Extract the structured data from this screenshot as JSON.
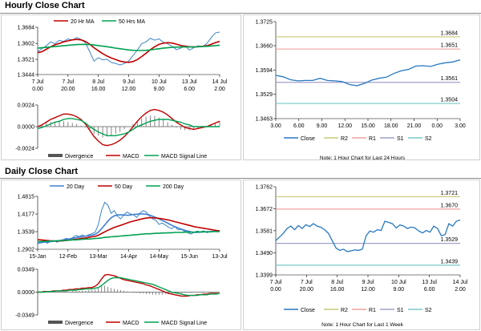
{
  "titles": {
    "hourly": "Hourly Close Chart",
    "daily": "Daily Close Chart"
  },
  "notes": {
    "hourly": "Note: 1 Hour Chart for Last 24 Hours",
    "daily": "Note: 1 Hour Chart for  Last 1 Week"
  },
  "colors": {
    "close": "#2878c0",
    "ma_short": "#c00000",
    "ma_long": "#00a050",
    "ma20": "#4080d0",
    "green": "#00a050",
    "r2": "#c8c87a",
    "r1": "#f0a0a0",
    "s1": "#a0a0c8",
    "s2": "#7ac8c8",
    "divergence": "#777777",
    "signal": "#00a050"
  },
  "chart_data": [
    {
      "id": "hourly_price",
      "type": "line",
      "ylim": [
        1.3444,
        1.3684
      ],
      "y_ticks": [
        "1.3684",
        "1.3602",
        "1.3521",
        "1.3444"
      ],
      "x_ticks": [
        "7 Jul\n0.00",
        "7 Jul\n20.00",
        "8 Jul\n16.00",
        "9 Jul\n12.00",
        "10 Jul\n9.00",
        "13 Jul\n6.00",
        "14 Jul\n2.00"
      ],
      "legend": [
        "20 Hr MA",
        "50 Hrs MA"
      ],
      "series": [
        {
          "name": "Close",
          "values": [
            1.356,
            1.3575,
            1.359,
            1.361,
            1.36,
            1.3618,
            1.3612,
            1.3625,
            1.3618,
            1.3632,
            1.3622,
            1.3605,
            1.356,
            1.3512,
            1.353,
            1.3518,
            1.3522,
            1.3505,
            1.35,
            1.3492,
            1.35,
            1.3512,
            1.354,
            1.3568,
            1.36,
            1.361,
            1.3628,
            1.3618,
            1.3625,
            1.3608,
            1.36,
            1.3588,
            1.357,
            1.3578,
            1.359,
            1.3568,
            1.358,
            1.359,
            1.3585,
            1.36,
            1.363,
            1.3655,
            1.366
          ]
        },
        {
          "name": "20 Hr MA",
          "values": [
            1.3555,
            1.356,
            1.3572,
            1.3585,
            1.3595,
            1.3602,
            1.361,
            1.3615,
            1.362,
            1.3622,
            1.362,
            1.3612,
            1.3598,
            1.358,
            1.3565,
            1.355,
            1.3538,
            1.3528,
            1.352,
            1.3512,
            1.3508,
            1.3506,
            1.351,
            1.352,
            1.3535,
            1.3552,
            1.357,
            1.3585,
            1.3597,
            1.3603,
            1.3606,
            1.3604,
            1.3598,
            1.3592,
            1.3588,
            1.3585,
            1.3584,
            1.3585,
            1.3587,
            1.359,
            1.3597,
            1.3606,
            1.3612
          ]
        },
        {
          "name": "50 Hrs MA",
          "values": [
            1.3578,
            1.358,
            1.3582,
            1.3584,
            1.3586,
            1.3588,
            1.359,
            1.3592,
            1.3594,
            1.3596,
            1.3597,
            1.3597,
            1.3596,
            1.3594,
            1.3591,
            1.3588,
            1.3585,
            1.3582,
            1.3578,
            1.3575,
            1.3572,
            1.3569,
            1.3567,
            1.3566,
            1.3566,
            1.3567,
            1.3569,
            1.3572,
            1.3575,
            1.3578,
            1.358,
            1.3582,
            1.3583,
            1.3584,
            1.3584,
            1.3584,
            1.3584,
            1.3585,
            1.3586,
            1.3587,
            1.3589,
            1.3591,
            1.3593
          ]
        }
      ]
    },
    {
      "id": "hourly_macd",
      "type": "bar",
      "ylim": [
        -0.0024,
        0.0024
      ],
      "y_ticks": [
        "0.0024",
        "0.0000",
        "-0.0024"
      ],
      "legend": [
        "Divergence",
        "MACD",
        "MACD Signal Line"
      ],
      "series": [
        {
          "name": "Divergence",
          "values": [
            0.0002,
            0.0003,
            0.0004,
            0.0005,
            0.0005,
            0.0006,
            0.0006,
            0.0005,
            0.0004,
            0.0003,
            0.0001,
            -0.0001,
            -0.0004,
            -0.0008,
            -0.001,
            -0.0012,
            -0.0011,
            -0.001,
            -0.0008,
            -0.0006,
            -0.0003,
            0.0,
            0.0003,
            0.0006,
            0.0009,
            0.0011,
            0.0012,
            0.0012,
            0.001,
            0.0008,
            0.0005,
            0.0002,
            -0.0001,
            -0.0003,
            -0.0004,
            -0.0004,
            -0.0003,
            -0.0002,
            -0.0001,
            0.0,
            0.0002,
            0.0004,
            0.0006
          ]
        },
        {
          "name": "MACD",
          "values": [
            0.0,
            0.0002,
            0.0005,
            0.0008,
            0.001,
            0.0012,
            0.0014,
            0.0014,
            0.0013,
            0.0011,
            0.0008,
            0.0003,
            -0.0004,
            -0.0011,
            -0.0016,
            -0.002,
            -0.0021,
            -0.002,
            -0.0018,
            -0.0015,
            -0.0011,
            -0.0006,
            0.0,
            0.0006,
            0.0011,
            0.0015,
            0.0018,
            0.0019,
            0.0018,
            0.0016,
            0.0013,
            0.0009,
            0.0005,
            0.0002,
            -0.0001,
            -0.0002,
            -0.0003,
            -0.0002,
            -0.0001,
            0.0,
            0.0002,
            0.0004,
            0.0006
          ]
        },
        {
          "name": "MACD Signal Line",
          "values": [
            -0.0002,
            -0.0001,
            0.0001,
            0.0003,
            0.0005,
            0.0006,
            0.0008,
            0.0009,
            0.0009,
            0.0008,
            0.0007,
            0.0004,
            0.0,
            -0.0003,
            -0.0006,
            -0.0008,
            -0.001,
            -0.001,
            -0.001,
            -0.0009,
            -0.0008,
            -0.0006,
            -0.0003,
            0.0,
            0.0002,
            0.0004,
            0.0006,
            0.0007,
            0.0008,
            0.0008,
            0.0008,
            0.0007,
            0.0006,
            0.0005,
            0.0003,
            0.0002,
            0.0,
            0.0,
            0.0,
            0.0,
            0.0,
            0.0,
            0.0
          ]
        }
      ]
    },
    {
      "id": "hourly_close_24h",
      "type": "line",
      "ylim": [
        1.3463,
        1.3725
      ],
      "y_ticks": [
        "1.3725",
        "1.3660",
        "1.3594",
        "1.3529",
        "1.3463"
      ],
      "x_ticks": [
        "3.00",
        "6.00",
        "9.00",
        "12.00",
        "15.00",
        "18.00",
        "21.00",
        "0.00",
        "3.00"
      ],
      "legend": [
        "Close",
        "R2",
        "R1",
        "S1",
        "S2"
      ],
      "levels": [
        {
          "name": "R2",
          "value": 1.3684,
          "label": "1.3684"
        },
        {
          "name": "R1",
          "value": 1.3651,
          "label": "1.3651"
        },
        {
          "name": "S1",
          "value": 1.3561,
          "label": "1.3561"
        },
        {
          "name": "S2",
          "value": 1.3504,
          "label": "1.3504"
        }
      ],
      "series": [
        {
          "name": "Close",
          "values": [
            1.358,
            1.3576,
            1.3568,
            1.3565,
            1.3566,
            1.3566,
            1.3572,
            1.3566,
            1.3565,
            1.3563,
            1.3555,
            1.3552,
            1.3558,
            1.3567,
            1.3572,
            1.3575,
            1.3585,
            1.3592,
            1.3596,
            1.3605,
            1.3606,
            1.3604,
            1.361,
            1.3614,
            1.3616,
            1.3622
          ]
        }
      ]
    },
    {
      "id": "daily_price",
      "type": "line",
      "ylim": [
        1.2902,
        1.4815
      ],
      "y_ticks": [
        "1.4815",
        "1.4177",
        "1.3539",
        "1.2902"
      ],
      "x_ticks": [
        "15-Jan",
        "12-Feb",
        "13-Mar",
        "14-Apr",
        "14-May",
        "15-Jun",
        "13-Jul"
      ],
      "legend": [
        "20 Day",
        "50 Day",
        "200 Day"
      ],
      "series": [
        {
          "name": "Close",
          "values": [
            1.31,
            1.315,
            1.32,
            1.312,
            1.318,
            1.322,
            1.316,
            1.32,
            1.325,
            1.33,
            1.326,
            1.333,
            1.34,
            1.336,
            1.342,
            1.337,
            1.343,
            1.346,
            1.352,
            1.38,
            1.43,
            1.46,
            1.45,
            1.42,
            1.43,
            1.41,
            1.4,
            1.415,
            1.425,
            1.418,
            1.415,
            1.405,
            1.42,
            1.43,
            1.425,
            1.41,
            1.4,
            1.395,
            1.38,
            1.385,
            1.378,
            1.37,
            1.365,
            1.372,
            1.36,
            1.362,
            1.355,
            1.35,
            1.345,
            1.352,
            1.356,
            1.353,
            1.357,
            1.35,
            1.354,
            1.356,
            1.353,
            1.358
          ]
        },
        {
          "name": "20 Day",
          "values": [
            1.312,
            1.314,
            1.316,
            1.317,
            1.318,
            1.319,
            1.32,
            1.322,
            1.324,
            1.326,
            1.328,
            1.33,
            1.332,
            1.334,
            1.336,
            1.338,
            1.339,
            1.341,
            1.344,
            1.352,
            1.364,
            1.378,
            1.392,
            1.404,
            1.411,
            1.414,
            1.415,
            1.414,
            1.413,
            1.414,
            1.416,
            1.417,
            1.418,
            1.418,
            1.417,
            1.414,
            1.41,
            1.405,
            1.4,
            1.394,
            1.389,
            1.383,
            1.377,
            1.372,
            1.367,
            1.363,
            1.359,
            1.356,
            1.353,
            1.351,
            1.351,
            1.352,
            1.353,
            1.354,
            1.354,
            1.355,
            1.355,
            1.356
          ]
        },
        {
          "name": "50 Day",
          "values": [
            1.325,
            1.324,
            1.323,
            1.322,
            1.321,
            1.32,
            1.32,
            1.32,
            1.321,
            1.322,
            1.323,
            1.325,
            1.326,
            1.328,
            1.33,
            1.331,
            1.333,
            1.335,
            1.337,
            1.341,
            1.347,
            1.353,
            1.359,
            1.364,
            1.369,
            1.373,
            1.377,
            1.381,
            1.385,
            1.389,
            1.392,
            1.395,
            1.398,
            1.401,
            1.403,
            1.404,
            1.404,
            1.403,
            1.402,
            1.4,
            1.398,
            1.396,
            1.393,
            1.39,
            1.387,
            1.384,
            1.381,
            1.378,
            1.375,
            1.372,
            1.37,
            1.368,
            1.366,
            1.364,
            1.362,
            1.36,
            1.358,
            1.357
          ]
        },
        {
          "name": "200 Day",
          "values": [
            1.318,
            1.318,
            1.319,
            1.319,
            1.32,
            1.32,
            1.321,
            1.321,
            1.322,
            1.322,
            1.323,
            1.324,
            1.324,
            1.325,
            1.326,
            1.327,
            1.327,
            1.328,
            1.329,
            1.33,
            1.331,
            1.333,
            1.334,
            1.335,
            1.336,
            1.337,
            1.338,
            1.339,
            1.34,
            1.341,
            1.342,
            1.343,
            1.344,
            1.345,
            1.346,
            1.346,
            1.347,
            1.348,
            1.348,
            1.349,
            1.349,
            1.35,
            1.35,
            1.351,
            1.351,
            1.351,
            1.352,
            1.352,
            1.352,
            1.352,
            1.353,
            1.353,
            1.353,
            1.353,
            1.353,
            1.354,
            1.354,
            1.354
          ]
        }
      ]
    },
    {
      "id": "daily_macd",
      "type": "bar",
      "ylim": [
        -0.0349,
        0.0349
      ],
      "y_ticks": [
        "0.0349",
        "0.0000",
        "-0.0349"
      ],
      "legend": [
        "Divergence",
        "MACD",
        "MACD Signal Line"
      ],
      "series": [
        {
          "name": "Divergence",
          "values": [
            0.0,
            0.0,
            0.001,
            0.0,
            0.001,
            0.001,
            0.0,
            0.001,
            0.001,
            0.001,
            0.001,
            0.002,
            0.002,
            0.002,
            0.002,
            0.002,
            0.003,
            0.003,
            0.004,
            0.006,
            0.009,
            0.01,
            0.008,
            0.006,
            0.005,
            0.004,
            0.003,
            0.002,
            0.001,
            0.0,
            -0.001,
            -0.001,
            -0.002,
            -0.002,
            -0.003,
            -0.003,
            -0.004,
            -0.004,
            -0.004,
            -0.004,
            -0.003,
            -0.003,
            -0.003,
            -0.002,
            -0.002,
            -0.002,
            -0.001,
            -0.001,
            -0.001,
            0.0,
            0.0,
            0.0,
            0.001,
            0.0,
            0.0,
            0.0,
            0.0,
            0.0
          ]
        },
        {
          "name": "MACD",
          "values": [
            0.0,
            0.0,
            0.001,
            0.001,
            0.001,
            0.002,
            0.002,
            0.002,
            0.003,
            0.003,
            0.004,
            0.004,
            0.005,
            0.005,
            0.006,
            0.006,
            0.007,
            0.007,
            0.009,
            0.013,
            0.02,
            0.026,
            0.027,
            0.026,
            0.025,
            0.023,
            0.021,
            0.019,
            0.018,
            0.017,
            0.016,
            0.015,
            0.014,
            0.013,
            0.011,
            0.01,
            0.008,
            0.006,
            0.004,
            0.002,
            0.0,
            -0.002,
            -0.003,
            -0.004,
            -0.005,
            -0.006,
            -0.006,
            -0.006,
            -0.005,
            -0.005,
            -0.004,
            -0.004,
            -0.003,
            -0.003,
            -0.002,
            -0.002,
            -0.002,
            -0.002
          ]
        },
        {
          "name": "MACD Signal Line",
          "values": [
            0.0,
            0.0,
            0.0,
            0.001,
            0.001,
            0.001,
            0.002,
            0.002,
            0.002,
            0.002,
            0.003,
            0.003,
            0.003,
            0.004,
            0.004,
            0.005,
            0.005,
            0.005,
            0.006,
            0.007,
            0.01,
            0.014,
            0.018,
            0.021,
            0.022,
            0.022,
            0.022,
            0.021,
            0.02,
            0.019,
            0.018,
            0.017,
            0.016,
            0.015,
            0.014,
            0.013,
            0.012,
            0.01,
            0.008,
            0.006,
            0.004,
            0.002,
            0.0,
            -0.001,
            -0.002,
            -0.003,
            -0.004,
            -0.005,
            -0.005,
            -0.005,
            -0.005,
            -0.004,
            -0.004,
            -0.004,
            -0.003,
            -0.003,
            -0.003,
            -0.002
          ]
        }
      ]
    },
    {
      "id": "daily_close_week",
      "type": "line",
      "ylim": [
        1.3399,
        1.3762
      ],
      "y_ticks": [
        "1.3762",
        "1.3672",
        "1.3581",
        "1.3490",
        "1.3399"
      ],
      "x_ticks": [
        "7 Jul\n0.00",
        "7 Jul\n20.00",
        "8 Jul\n16.00",
        "9 Jul\n12.00",
        "10 Jul\n9.00",
        "13 Jul\n6.00",
        "14 Jul\n2.00"
      ],
      "legend": [
        "Close",
        "R2",
        "R1",
        "S1",
        "S2"
      ],
      "levels": [
        {
          "name": "R2",
          "value": 1.3721,
          "label": "1.3721"
        },
        {
          "name": "R1",
          "value": 1.367,
          "label": "1.3670"
        },
        {
          "name": "S1",
          "value": 1.3529,
          "label": "1.3529"
        },
        {
          "name": "S2",
          "value": 1.3439,
          "label": "1.3439"
        }
      ],
      "series": [
        {
          "name": "Close",
          "values": [
            1.354,
            1.3555,
            1.357,
            1.359,
            1.36,
            1.3585,
            1.3602,
            1.359,
            1.3606,
            1.3598,
            1.361,
            1.36,
            1.3595,
            1.3585,
            1.357,
            1.354,
            1.351,
            1.35,
            1.3505,
            1.3495,
            1.3498,
            1.3502,
            1.35,
            1.3505,
            1.356,
            1.358,
            1.3575,
            1.3585,
            1.3582,
            1.362,
            1.3615,
            1.361,
            1.3592,
            1.3605,
            1.36,
            1.359,
            1.3596,
            1.3592,
            1.358,
            1.3572,
            1.3582,
            1.3575,
            1.36,
            1.359,
            1.356,
            1.3565,
            1.361,
            1.36,
            1.362,
            1.3625
          ]
        }
      ]
    }
  ]
}
